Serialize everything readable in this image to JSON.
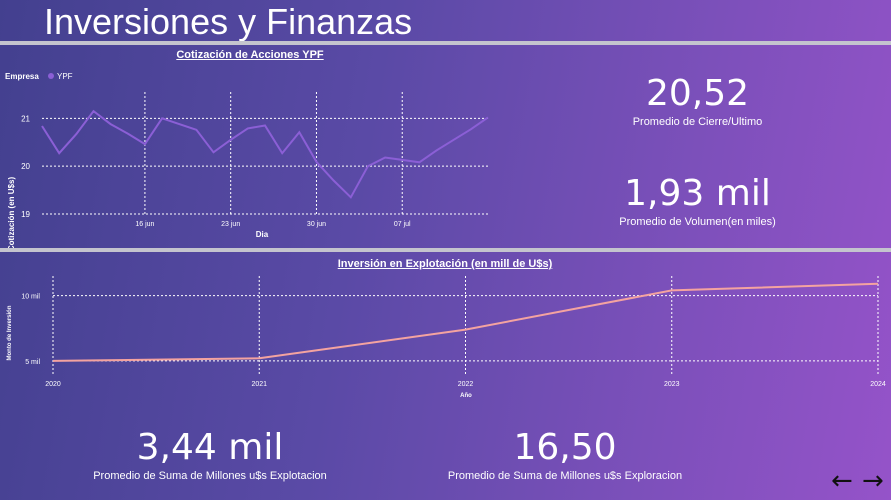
{
  "page": {
    "title": "Inversiones y Finanzas",
    "nav": {
      "prev_icon": "←",
      "next_icon": "→"
    }
  },
  "colors": {
    "stock_line": "#8b5fd6",
    "invest_line": "#f4a3a0",
    "grid": "#ffffff"
  },
  "kpis": [
    {
      "value": "20,52",
      "label": "Promedio de Cierre/Ultimo"
    },
    {
      "value": "1,93 mil",
      "label": "Promedio de Volumen(en miles)"
    },
    {
      "value": "3,44 mil",
      "label": "Promedio de Suma de Millones u$s Explotacion"
    },
    {
      "value": "16,50",
      "label": "Promedio de Suma de Millones u$s Exploracion"
    }
  ],
  "chart_data": [
    {
      "type": "line",
      "title": "Cotización de Acciones YPF",
      "xlabel": "Dia",
      "ylabel": "Cotización (en U$s)",
      "legend": {
        "title": "Empresa",
        "placement": "top-left"
      },
      "series": [
        {
          "name": "YPF",
          "values": [
            20.84,
            20.27,
            20.67,
            21.15,
            20.88,
            20.68,
            20.46,
            21.0,
            20.88,
            20.76,
            20.29,
            20.55,
            20.79,
            20.85,
            20.27,
            20.71,
            20.09,
            19.7,
            19.35,
            20.0,
            20.18,
            20.13,
            20.08,
            20.33,
            20.55,
            20.77,
            21.02
          ]
        }
      ],
      "x_ticks": [
        "16 jun",
        "23 jun",
        "30 jun",
        "07 jul"
      ],
      "x_tick_index": [
        6,
        11,
        16,
        21
      ],
      "y_ticks": [
        19,
        20,
        21
      ],
      "ylim": [
        19,
        21.55
      ],
      "grid": true
    },
    {
      "type": "line",
      "title": "Inversión en Explotación (en mill de U$s)",
      "xlabel": "Año",
      "ylabel": "Monto de Inversión",
      "categories": [
        "2020",
        "2021",
        "2022",
        "2023",
        "2024"
      ],
      "series": [
        {
          "values": [
            5000,
            5200,
            7400,
            10400,
            10900
          ]
        }
      ],
      "y_ticks": [
        {
          "value": 5000,
          "label": "5 mil"
        },
        {
          "value": 10000,
          "label": "10 mil"
        }
      ],
      "ylim": [
        4000,
        11500
      ],
      "grid": true
    }
  ]
}
